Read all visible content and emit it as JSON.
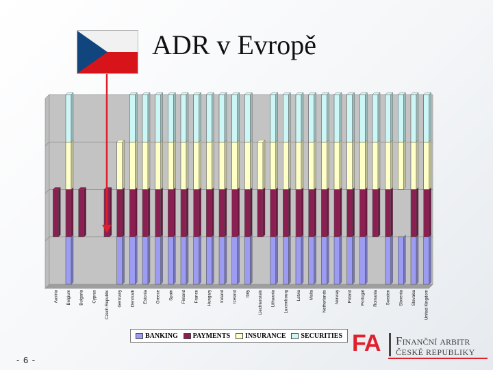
{
  "title": "ADR v Evropě",
  "page_number": "- 6 -",
  "logo": {
    "mark": "FA",
    "line1": "Finanční arbitr",
    "line2": "České republiky"
  },
  "colors": {
    "banking": "#9c9cf2",
    "payments": "#8a2052",
    "insurance": "#ffffc8",
    "securities": "#cdf6f6",
    "arrow": "#e0202c"
  },
  "chart_data": {
    "type": "bar",
    "stacked": true,
    "categories": [
      "Austria",
      "Belgium",
      "Bulgaria",
      "Cyprus",
      "Czech Republic",
      "Germany",
      "Denmark",
      "Estonia",
      "Greece",
      "Spain",
      "Finland",
      "France",
      "Hungary",
      "Ireland",
      "Iceland",
      "Italy",
      "Liechtenstein",
      "Lithuania",
      "Luxembourg",
      "Latvia",
      "Malta",
      "Netherlands",
      "Norway",
      "Poland",
      "Portugal",
      "Romania",
      "Sweden",
      "Slovenia",
      "Slovakia",
      "United Kingdom"
    ],
    "series": [
      {
        "name": "BANKING",
        "values": [
          0,
          1,
          0,
          0,
          0,
          1,
          1,
          1,
          1,
          1,
          1,
          1,
          1,
          1,
          1,
          1,
          0,
          1,
          1,
          1,
          1,
          1,
          1,
          1,
          1,
          0,
          1,
          1,
          1,
          1
        ]
      },
      {
        "name": "PAYMENTS",
        "values": [
          1,
          1,
          1,
          0,
          1,
          1,
          1,
          1,
          1,
          1,
          1,
          1,
          1,
          1,
          1,
          1,
          1,
          1,
          1,
          1,
          1,
          1,
          1,
          1,
          1,
          1,
          1,
          0,
          1,
          1
        ]
      },
      {
        "name": "INSURANCE",
        "values": [
          0,
          1,
          0,
          0,
          0,
          1,
          1,
          1,
          1,
          1,
          1,
          1,
          1,
          1,
          1,
          1,
          1,
          1,
          1,
          1,
          1,
          1,
          1,
          1,
          1,
          1,
          1,
          1,
          1,
          1
        ]
      },
      {
        "name": "SECURITIES",
        "values": [
          0,
          1,
          0,
          0,
          0,
          0,
          1,
          1,
          1,
          1,
          1,
          1,
          1,
          1,
          1,
          1,
          0,
          1,
          1,
          1,
          1,
          1,
          1,
          1,
          1,
          1,
          1,
          1,
          1,
          1
        ]
      }
    ],
    "ylim": [
      0,
      4
    ],
    "grid": true,
    "legend": "bottom",
    "highlight": "Czech Republic"
  }
}
